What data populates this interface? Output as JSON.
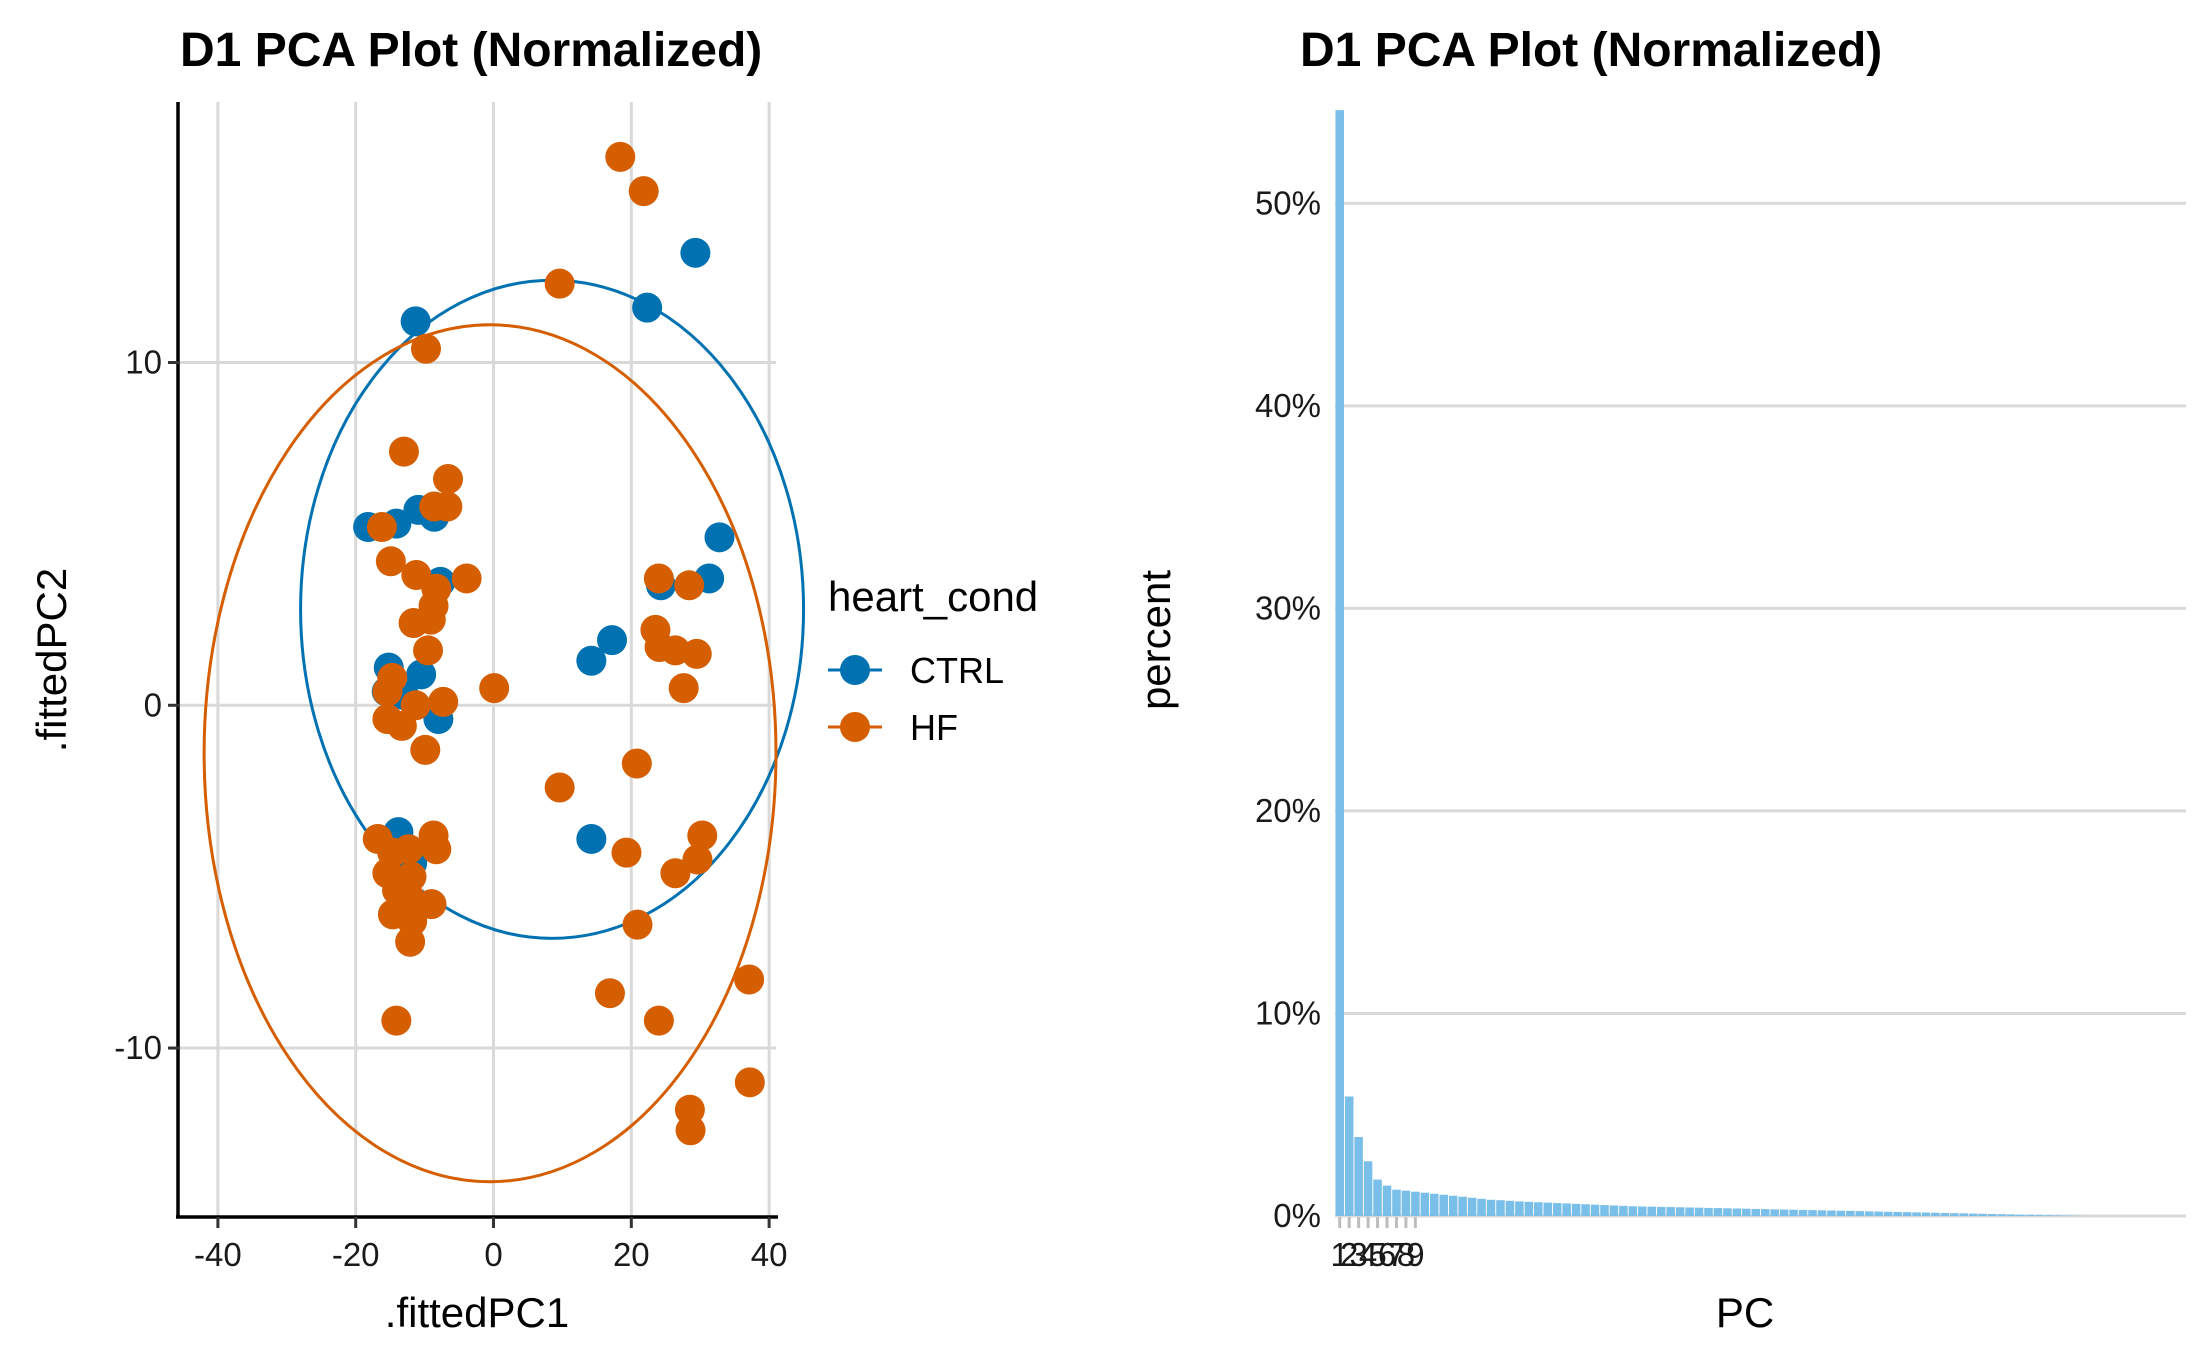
{
  "colors": {
    "CTRL": "#0072B2",
    "HF": "#D55E00",
    "bars": "#7ABFEA",
    "grid": "#d9d9d9"
  },
  "chart_data": [
    {
      "type": "scatter",
      "title": "D1 PCA Plot (Normalized)",
      "xlabel": ".fittedPC1",
      "ylabel": ".fittedPC2",
      "xlim": [
        -45.5,
        41.0
      ],
      "ylim": [
        -14.9,
        17.6
      ],
      "x_ticks": [
        -40,
        -20,
        0,
        20,
        40
      ],
      "y_ticks": [
        -10,
        0,
        10
      ],
      "x_tick_labels": [
        "-40",
        "-20",
        "0",
        "20",
        "40"
      ],
      "y_tick_labels": [
        "-10",
        "0",
        "10"
      ],
      "grid": true,
      "legend": {
        "title": "heart_cond",
        "position": "right",
        "entries": [
          "CTRL",
          "HF"
        ]
      },
      "ellipses": [
        {
          "group": "CTRL",
          "cx": 8.5,
          "cy": 2.8,
          "rx": 36.5,
          "ry": 9.6
        },
        {
          "group": "HF",
          "cx": -0.5,
          "cy": -1.4,
          "rx": 41.5,
          "ry": 12.5
        }
      ],
      "series": [
        {
          "name": "CTRL",
          "points": [
            [
              29.3,
              13.2
            ],
            [
              22.3,
              11.6
            ],
            [
              -11.3,
              11.2
            ],
            [
              32.8,
              4.9
            ],
            [
              31.3,
              3.7
            ],
            [
              24.3,
              3.5
            ],
            [
              -18.2,
              5.2
            ],
            [
              -14.1,
              5.3
            ],
            [
              -10.9,
              5.7
            ],
            [
              -8.6,
              5.5
            ],
            [
              -7.7,
              3.6
            ],
            [
              -15.2,
              1.1
            ],
            [
              -10.5,
              0.9
            ],
            [
              14.2,
              1.3
            ],
            [
              17.2,
              1.9
            ],
            [
              -15.5,
              0.4
            ],
            [
              -13.0,
              0.3
            ],
            [
              -8.0,
              -0.4
            ],
            [
              14.2,
              -3.9
            ],
            [
              -13.8,
              -3.7
            ],
            [
              -9.0,
              -4.1
            ],
            [
              -11.8,
              -4.6
            ]
          ]
        },
        {
          "name": "HF",
          "points": [
            [
              18.4,
              16.0
            ],
            [
              21.8,
              15.0
            ],
            [
              9.6,
              12.3
            ],
            [
              -9.8,
              10.4
            ],
            [
              -13.0,
              7.4
            ],
            [
              -6.6,
              6.6
            ],
            [
              -6.7,
              5.8
            ],
            [
              -8.6,
              5.8
            ],
            [
              -16.2,
              5.2
            ],
            [
              -14.9,
              4.2
            ],
            [
              -11.2,
              3.8
            ],
            [
              -8.3,
              3.4
            ],
            [
              -3.9,
              3.7
            ],
            [
              24.0,
              3.7
            ],
            [
              28.4,
              3.5
            ],
            [
              -8.7,
              2.9
            ],
            [
              -11.6,
              2.4
            ],
            [
              -9.1,
              2.5
            ],
            [
              23.5,
              2.2
            ],
            [
              24.1,
              1.7
            ],
            [
              26.4,
              1.6
            ],
            [
              29.5,
              1.5
            ],
            [
              -9.5,
              1.6
            ],
            [
              -15.4,
              0.4
            ],
            [
              -14.7,
              0.8
            ],
            [
              -11.3,
              0.0
            ],
            [
              -7.3,
              0.1
            ],
            [
              27.6,
              0.5
            ],
            [
              0.1,
              0.5
            ],
            [
              -15.4,
              -0.4
            ],
            [
              -13.3,
              -0.6
            ],
            [
              -9.9,
              -1.3
            ],
            [
              20.8,
              -1.7
            ],
            [
              9.6,
              -2.4
            ],
            [
              -16.8,
              -3.9
            ],
            [
              -14.7,
              -4.3
            ],
            [
              -12.3,
              -4.2
            ],
            [
              -8.7,
              -3.8
            ],
            [
              -8.3,
              -4.2
            ],
            [
              30.3,
              -3.8
            ],
            [
              19.3,
              -4.3
            ],
            [
              29.6,
              -4.5
            ],
            [
              -15.4,
              -4.9
            ],
            [
              -11.9,
              -5.0
            ],
            [
              26.4,
              -4.9
            ],
            [
              -14.0,
              -5.4
            ],
            [
              -12.2,
              -5.6
            ],
            [
              -9.0,
              -5.8
            ],
            [
              -14.6,
              -6.1
            ],
            [
              -11.8,
              -6.3
            ],
            [
              20.9,
              -6.4
            ],
            [
              -12.1,
              -6.9
            ],
            [
              37.1,
              -8.0
            ],
            [
              16.9,
              -8.4
            ],
            [
              -14.1,
              -9.2
            ],
            [
              24.0,
              -9.2
            ],
            [
              37.2,
              -11.0
            ],
            [
              28.5,
              -11.8
            ],
            [
              28.6,
              -12.4
            ]
          ]
        }
      ]
    },
    {
      "type": "bar",
      "title": "D1 PCA Plot (Normalized)",
      "xlabel": "PC",
      "ylabel": "percent",
      "ylim": [
        0,
        55
      ],
      "y_ticks": [
        0,
        10,
        20,
        30,
        40,
        50
      ],
      "y_tick_labels": [
        "0%",
        "10%",
        "20%",
        "30%",
        "40%",
        "50%"
      ],
      "x_tick_labels": [
        "1",
        "2",
        "3",
        "4",
        "5",
        "6",
        "7",
        "8",
        "9"
      ],
      "x_range_count": 90,
      "grid": true,
      "values": [
        54.6,
        5.9,
        3.9,
        2.7,
        1.8,
        1.5,
        1.3,
        1.25,
        1.2,
        1.15,
        1.1,
        1.05,
        1.0,
        0.95,
        0.9,
        0.85,
        0.8,
        0.78,
        0.75,
        0.72,
        0.7,
        0.68,
        0.66,
        0.64,
        0.62,
        0.6,
        0.58,
        0.56,
        0.54,
        0.52,
        0.5,
        0.48,
        0.47,
        0.46,
        0.45,
        0.44,
        0.43,
        0.42,
        0.41,
        0.4,
        0.39,
        0.38,
        0.37,
        0.36,
        0.35,
        0.34,
        0.33,
        0.32,
        0.31,
        0.3,
        0.29,
        0.28,
        0.27,
        0.26,
        0.25,
        0.24,
        0.23,
        0.22,
        0.21,
        0.2,
        0.19,
        0.18,
        0.17,
        0.16,
        0.15,
        0.14,
        0.13,
        0.12,
        0.11,
        0.1,
        0.09,
        0.08,
        0.07,
        0.06,
        0.05,
        0.04,
        0.03,
        0.02,
        0.01,
        0.0
      ]
    }
  ]
}
